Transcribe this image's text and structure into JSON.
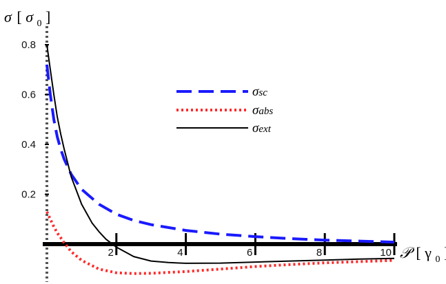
{
  "chart_data": {
    "type": "line",
    "xlabel": {
      "main": "𝒫",
      "bracket_open": "[",
      "symbol": "γ",
      "subscript": "0",
      "bracket_close": "]"
    },
    "ylabel": {
      "main": "σ",
      "bracket_open": "[",
      "symbol": "σ",
      "subscript": "0",
      "bracket_close": "]"
    },
    "xlim": [
      0,
      10
    ],
    "ylim": [
      -0.15,
      0.85
    ],
    "x_ticks": [
      {
        "value": 2,
        "label": "2"
      },
      {
        "value": 4,
        "label": "4"
      },
      {
        "value": 6,
        "label": "6"
      },
      {
        "value": 8,
        "label": "8"
      },
      {
        "value": 10,
        "label": "10"
      }
    ],
    "y_ticks": [
      {
        "value": 0.2,
        "label": "0.2"
      },
      {
        "value": 0.4,
        "label": "0.4"
      },
      {
        "value": 0.6,
        "label": "0.6"
      },
      {
        "value": 0.8,
        "label": "0.8"
      }
    ],
    "grid": false,
    "legend_position": "center",
    "series": [
      {
        "name": "σsc",
        "legend_main": "σ",
        "legend_sub": "sc",
        "color": "#1a1aff",
        "style": "dashed",
        "x": [
          0,
          0.1,
          0.2,
          0.3,
          0.4,
          0.5,
          0.7,
          1.0,
          1.5,
          2.0,
          2.5,
          3.0,
          4.0,
          5.0,
          6.0,
          7.0,
          8.0,
          9.0,
          10.0
        ],
        "y": [
          0.72,
          0.6,
          0.5,
          0.43,
          0.38,
          0.34,
          0.28,
          0.22,
          0.16,
          0.12,
          0.095,
          0.078,
          0.055,
          0.04,
          0.03,
          0.022,
          0.016,
          0.012,
          0.008
        ]
      },
      {
        "name": "σabs",
        "legend_main": "σ",
        "legend_sub": "abs",
        "color": "#ff2a2a",
        "style": "dotted",
        "x": [
          0,
          0.1,
          0.2,
          0.3,
          0.4,
          0.5,
          0.7,
          1.0,
          1.5,
          2.0,
          2.5,
          3.0,
          4.0,
          5.0,
          6.0,
          7.0,
          8.0,
          9.0,
          10.0
        ],
        "y": [
          0.13,
          0.1,
          0.07,
          0.045,
          0.025,
          0.005,
          -0.03,
          -0.065,
          -0.1,
          -0.115,
          -0.118,
          -0.117,
          -0.11,
          -0.1,
          -0.09,
          -0.082,
          -0.075,
          -0.07,
          -0.065
        ]
      },
      {
        "name": "σext",
        "legend_main": "σ",
        "legend_sub": "ext",
        "color": "#000000",
        "style": "solid",
        "x": [
          0,
          0.1,
          0.2,
          0.3,
          0.4,
          0.5,
          0.7,
          1.0,
          1.3,
          1.5,
          1.7,
          2.0,
          2.5,
          3.0,
          3.5,
          4.0,
          5.0,
          6.0,
          7.0,
          8.0,
          9.0,
          10.0
        ],
        "y": [
          0.8,
          0.7,
          0.6,
          0.51,
          0.44,
          0.38,
          0.27,
          0.16,
          0.085,
          0.05,
          0.02,
          -0.012,
          -0.05,
          -0.068,
          -0.074,
          -0.077,
          -0.076,
          -0.072,
          -0.068,
          -0.064,
          -0.06,
          -0.057
        ]
      }
    ]
  }
}
